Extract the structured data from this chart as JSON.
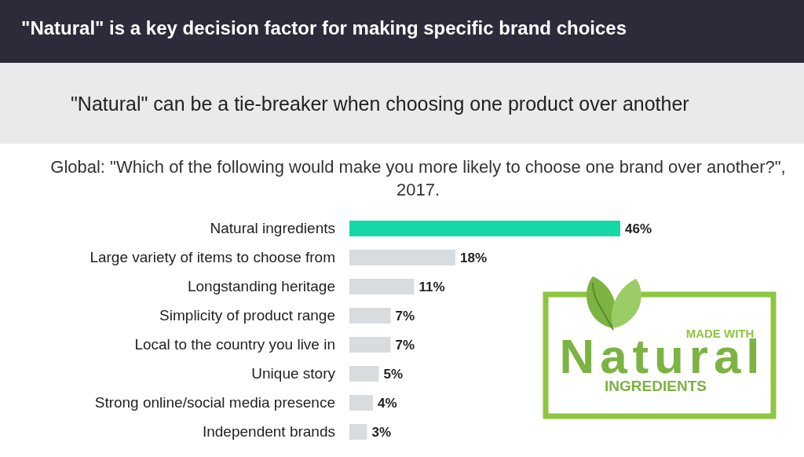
{
  "chart_data": {
    "type": "bar",
    "orientation": "horizontal",
    "title": "\"Natural\" is a key decision factor for making specific brand choices",
    "subtitle": "\"Natural\" can be a tie-breaker when choosing one product over another",
    "xlabel": "Global: \"Which of the following would make you more likely to choose one brand over another?\", 2017.",
    "categories": [
      "Natural ingredients",
      "Large variety of items to choose from",
      "Longstanding heritage",
      "Simplicity of product range",
      "Local to the country you live in",
      "Unique story",
      "Strong online/social media presence",
      "Independent brands"
    ],
    "values": [
      46,
      18,
      11,
      7,
      7,
      5,
      4,
      3
    ],
    "colors": [
      "#14d9a6",
      "#d9dcdf",
      "#d9dcdf",
      "#d9dcdf",
      "#d9dcdf",
      "#d9dcdf",
      "#d9dcdf",
      "#d9dcdf"
    ],
    "value_labels": [
      "46%",
      "18%",
      "11%",
      "7%",
      "7%",
      "5%",
      "4%",
      "3%"
    ],
    "annotations": [
      "MADE WITH",
      "Natural",
      "INGREDIENTS"
    ]
  }
}
